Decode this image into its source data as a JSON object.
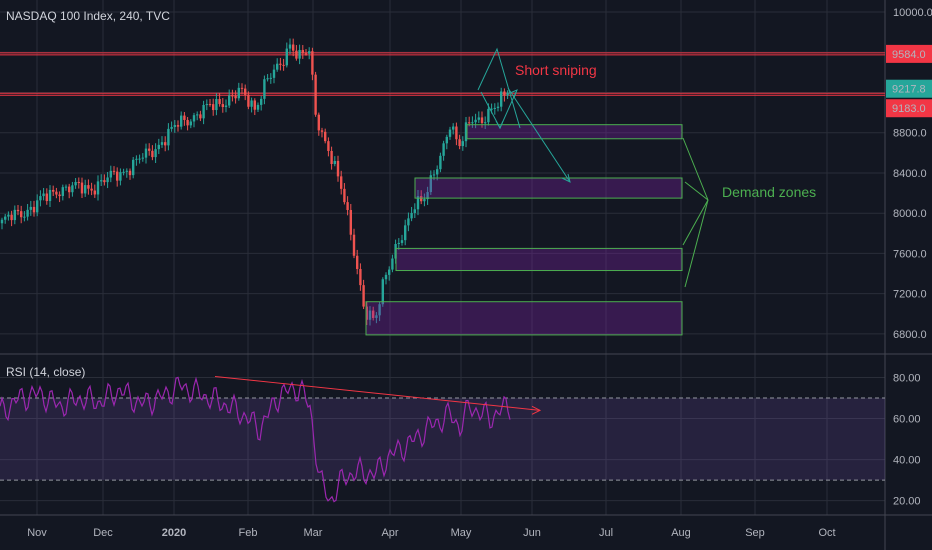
{
  "chart_data": {
    "type": "candlestick",
    "title": "NASDAQ 100 Index, 240, TVC",
    "price_axis": {
      "ylim": [
        6620,
        10080
      ],
      "ticks": [
        "10000.0",
        "9600.0",
        "9200.0",
        "8800.0",
        "8400.0",
        "8000.0",
        "7600.0",
        "7200.0",
        "6800.0"
      ],
      "tick_values": [
        10000,
        9600,
        9200,
        8800,
        8400,
        8000,
        7600,
        7200,
        6800
      ]
    },
    "price_labels": [
      {
        "text": "9584.0",
        "value": 9584,
        "color": "#f23645"
      },
      {
        "text": "9217.8",
        "value": 9217.8,
        "color": "#26a69a"
      },
      {
        "text": "9183.0",
        "value": 9183,
        "color": "#f23645"
      }
    ],
    "resistance_lines": [
      9584,
      9183
    ],
    "time_axis": [
      "Nov",
      "Dec",
      "2020",
      "Feb",
      "Mar",
      "Apr",
      "May",
      "Jun",
      "Jul",
      "Aug",
      "Sep",
      "Oct"
    ],
    "price_path": [
      [
        0,
        7900
      ],
      [
        0.03,
        8050
      ],
      [
        0.06,
        8250
      ],
      [
        0.09,
        8250
      ],
      [
        0.12,
        8400
      ],
      [
        0.15,
        8600
      ],
      [
        0.18,
        8900
      ],
      [
        0.21,
        9050
      ],
      [
        0.24,
        9200
      ],
      [
        0.255,
        9050
      ],
      [
        0.265,
        9300
      ],
      [
        0.28,
        9450
      ],
      [
        0.29,
        9700
      ],
      [
        0.3,
        9550
      ],
      [
        0.31,
        9600
      ],
      [
        0.315,
        9000
      ],
      [
        0.33,
        8600
      ],
      [
        0.345,
        8100
      ],
      [
        0.355,
        7600
      ],
      [
        0.365,
        7000
      ],
      [
        0.375,
        6900
      ],
      [
        0.385,
        7400
      ],
      [
        0.395,
        7650
      ],
      [
        0.405,
        7800
      ],
      [
        0.415,
        8100
      ],
      [
        0.425,
        8200
      ],
      [
        0.44,
        8500
      ],
      [
        0.45,
        8900
      ],
      [
        0.46,
        8700
      ],
      [
        0.47,
        8900
      ],
      [
        0.48,
        8900
      ],
      [
        0.49,
        9050
      ],
      [
        0.5,
        9100
      ],
      [
        0.51,
        9220
      ]
    ],
    "demand_zones": [
      {
        "from": 8880,
        "to": 8740
      },
      {
        "from": 8350,
        "to": 8150
      },
      {
        "from": 7650,
        "to": 7430
      },
      {
        "from": 7120,
        "to": 6790
      }
    ],
    "annotations": {
      "short": {
        "text": "Short sniping",
        "color": "#f23645"
      },
      "demand": {
        "text": "Demand zones",
        "color": "#4caf50"
      }
    },
    "rsi": {
      "title": "RSI (14, close)",
      "ylim": [
        13,
        90
      ],
      "ticks": [
        "80.00",
        "60.00",
        "40.00",
        "20.00"
      ],
      "tick_values": [
        80,
        60,
        40,
        20
      ],
      "bands": [
        70,
        30
      ],
      "path": [
        [
          0,
          63
        ],
        [
          0.02,
          70
        ],
        [
          0.04,
          72
        ],
        [
          0.06,
          66
        ],
        [
          0.08,
          70
        ],
        [
          0.1,
          68
        ],
        [
          0.12,
          74
        ],
        [
          0.14,
          67
        ],
        [
          0.16,
          70
        ],
        [
          0.18,
          76
        ],
        [
          0.2,
          72
        ],
        [
          0.22,
          68
        ],
        [
          0.24,
          63
        ],
        [
          0.26,
          55
        ],
        [
          0.28,
          72
        ],
        [
          0.3,
          75
        ],
        [
          0.31,
          65
        ],
        [
          0.32,
          30
        ],
        [
          0.33,
          20
        ],
        [
          0.345,
          32
        ],
        [
          0.36,
          34
        ],
        [
          0.375,
          33
        ],
        [
          0.39,
          42
        ],
        [
          0.41,
          48
        ],
        [
          0.43,
          56
        ],
        [
          0.45,
          62
        ],
        [
          0.46,
          56
        ],
        [
          0.47,
          66
        ],
        [
          0.49,
          60
        ],
        [
          0.5,
          64
        ],
        [
          0.51,
          66
        ]
      ],
      "trendline": {
        "from": [
          0.215,
          80.5
        ],
        "to": [
          0.54,
          64
        ]
      }
    }
  }
}
